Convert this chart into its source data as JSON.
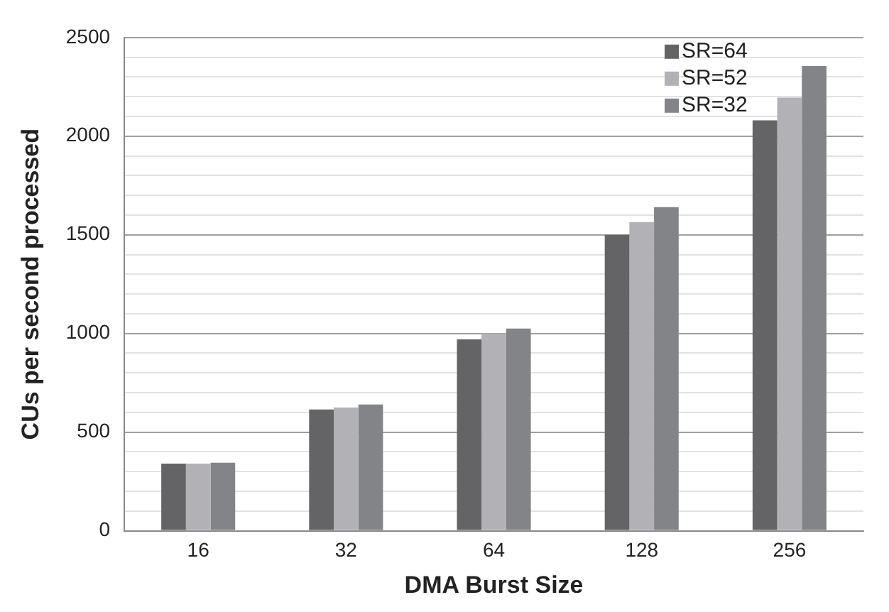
{
  "chart_data": {
    "type": "bar",
    "xlabel": "DMA Burst Size",
    "ylabel": "CUs per second processed",
    "categories": [
      "16",
      "32",
      "64",
      "128",
      "256"
    ],
    "series": [
      {
        "name": "SR=64",
        "color": "#646466",
        "values": [
          340,
          615,
          970,
          1500,
          2080
        ]
      },
      {
        "name": "SR=52",
        "color": "#b2b2b6",
        "values": [
          340,
          625,
          1000,
          1565,
          2195
        ]
      },
      {
        "name": "SR=32",
        "color": "#838487",
        "values": [
          345,
          640,
          1025,
          1640,
          2355
        ]
      }
    ],
    "ylim": [
      0,
      2500
    ],
    "yticks": [
      0,
      {
        "value": 100,
        "label": null
      },
      {
        "value": 200,
        "label": null
      },
      {
        "value": 300,
        "label": null
      },
      {
        "value": 400,
        "label": null
      },
      500,
      {
        "value": 600,
        "label": null
      },
      {
        "value": 700,
        "label": null
      },
      {
        "value": 800,
        "label": null
      },
      {
        "value": 900,
        "label": null
      },
      1000,
      {
        "value": 1100,
        "label": null
      },
      {
        "value": 1200,
        "label": null
      },
      {
        "value": 1300,
        "label": null
      },
      {
        "value": 1400,
        "label": null
      },
      1500,
      {
        "value": 1600,
        "label": null
      },
      {
        "value": 1700,
        "label": null
      },
      {
        "value": 1800,
        "label": null
      },
      {
        "value": 1900,
        "label": null
      },
      2000,
      {
        "value": 2100,
        "label": null
      },
      {
        "value": 2200,
        "label": null
      },
      {
        "value": 2300,
        "label": null
      },
      {
        "value": 2400,
        "label": null
      },
      2500
    ],
    "grid": "y",
    "legend": "top right"
  }
}
